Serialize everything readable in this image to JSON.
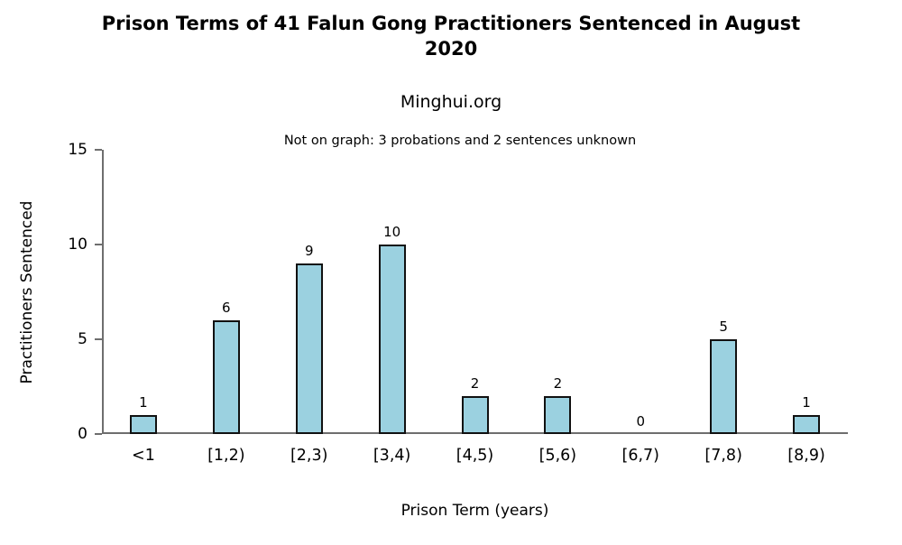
{
  "chart_data": {
    "type": "bar",
    "title": "Prison Terms of 41 Falun Gong Practitioners Sentenced in August 2020",
    "subtitle": "Minghui.org",
    "annotation": "Not on graph: 3 probations and 2 sentences unknown",
    "categories": [
      "<1",
      "[1,2)",
      "[2,3)",
      "[3,4)",
      "[4,5)",
      "[5,6)",
      "[6,7)",
      "[7,8)",
      "[8,9)"
    ],
    "values": [
      1,
      6,
      9,
      10,
      2,
      2,
      0,
      5,
      1
    ],
    "xlabel": "Prison Term (years)",
    "ylabel": "Practitioners Sentenced",
    "ylim": [
      0,
      15
    ],
    "yticks": [
      0,
      5,
      10,
      15
    ],
    "grid": false,
    "legend_position": "none",
    "colors": {
      "bar_fill": "#9BD1E0",
      "bar_border": "#111111",
      "axis": "#6E6E6E",
      "text": "#000000",
      "background": "#FFFFFF"
    }
  }
}
